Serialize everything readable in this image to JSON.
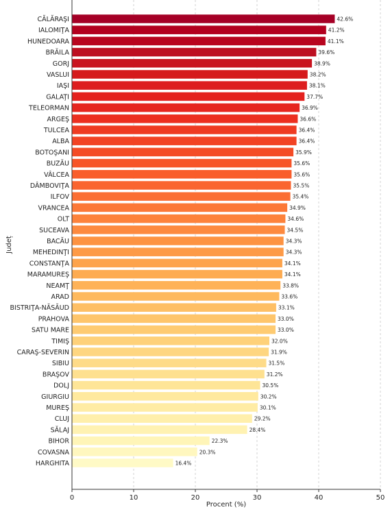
{
  "chart_data": {
    "type": "bar",
    "orientation": "horizontal",
    "xlabel": "Procent (%)",
    "ylabel": "Județ",
    "xlim": [
      0,
      50
    ],
    "xticks": [
      0,
      10,
      20,
      30,
      40,
      50
    ],
    "grid": "vertical-dashed",
    "categories": [
      "CĂLĂRAŞI",
      "IALOMIŢA",
      "HUNEDOARA",
      "BRĂILA",
      "GORJ",
      "VASLUI",
      "IAŞI",
      "GALAŢI",
      "TELEORMAN",
      "ARGEŞ",
      "TULCEA",
      "ALBA",
      "BOTOŞANI",
      "BUZĂU",
      "VÂLCEA",
      "DÂMBOVIŢA",
      "ILFOV",
      "VRANCEA",
      "OLT",
      "SUCEAVA",
      "BACĂU",
      "MEHEDINŢI",
      "CONSTANŢA",
      "MARAMUREŞ",
      "NEAMŢ",
      "ARAD",
      "BISTRIŢA-NĂSĂUD",
      "PRAHOVA",
      "SATU MARE",
      "TIMIŞ",
      "CARAŞ-SEVERIN",
      "SIBIU",
      "BRAŞOV",
      "DOLJ",
      "GIURGIU",
      "MUREŞ",
      "CLUJ",
      "SĂLAJ",
      "BIHOR",
      "COVASNA",
      "HARGHITA"
    ],
    "values": [
      42.6,
      41.2,
      41.1,
      39.6,
      38.9,
      38.2,
      38.1,
      37.7,
      36.9,
      36.6,
      36.4,
      36.4,
      35.9,
      35.6,
      35.6,
      35.5,
      35.4,
      34.9,
      34.6,
      34.5,
      34.3,
      34.3,
      34.1,
      34.1,
      33.8,
      33.6,
      33.1,
      33.0,
      33.0,
      32.0,
      31.9,
      31.5,
      31.2,
      30.5,
      30.2,
      30.1,
      29.2,
      28.4,
      22.3,
      20.3,
      16.4
    ],
    "data_labels": [
      "42.6%",
      "41.2%",
      "41.1%",
      "39.6%",
      "38.9%",
      "38.2%",
      "38.1%",
      "37.7%",
      "36.9%",
      "36.6%",
      "36.4%",
      "36.4%",
      "35.9%",
      "35.6%",
      "35.6%",
      "35.5%",
      "35.4%",
      "34.9%",
      "34.6%",
      "34.5%",
      "34.3%",
      "34.3%",
      "34.1%",
      "34.1%",
      "33.8%",
      "33.6%",
      "33.1%",
      "33.0%",
      "33.0%",
      "32.0%",
      "31.9%",
      "31.5%",
      "31.2%",
      "30.5%",
      "30.2%",
      "30.1%",
      "29.2%",
      "28.4%",
      "22.3%",
      "20.3%",
      "16.4%"
    ],
    "colormap": "YlOrRd",
    "colors": [
      "#a50026",
      "#b3001f",
      "#b8051f",
      "#bd0f21",
      "#c9141f",
      "#d51a1c",
      "#dd1d1e",
      "#e4211e",
      "#e6261f",
      "#ec2f20",
      "#ef3b22",
      "#f24324",
      "#f44c26",
      "#f75428",
      "#f95d2b",
      "#fa6530",
      "#fb6e33",
      "#fc7837",
      "#fd823b",
      "#fd8a3f",
      "#fd9342",
      "#fd9a47",
      "#fda34b",
      "#fdab51",
      "#feb257",
      "#feb95d",
      "#febf64",
      "#fec56b",
      "#fecb72",
      "#fed17a",
      "#fed681",
      "#fedb88",
      "#fee08f",
      "#fee597",
      "#ffe99e",
      "#ffeca5",
      "#ffefab",
      "#fff2b2",
      "#fff5b8",
      "#fff7bf",
      "#fffac6"
    ]
  }
}
